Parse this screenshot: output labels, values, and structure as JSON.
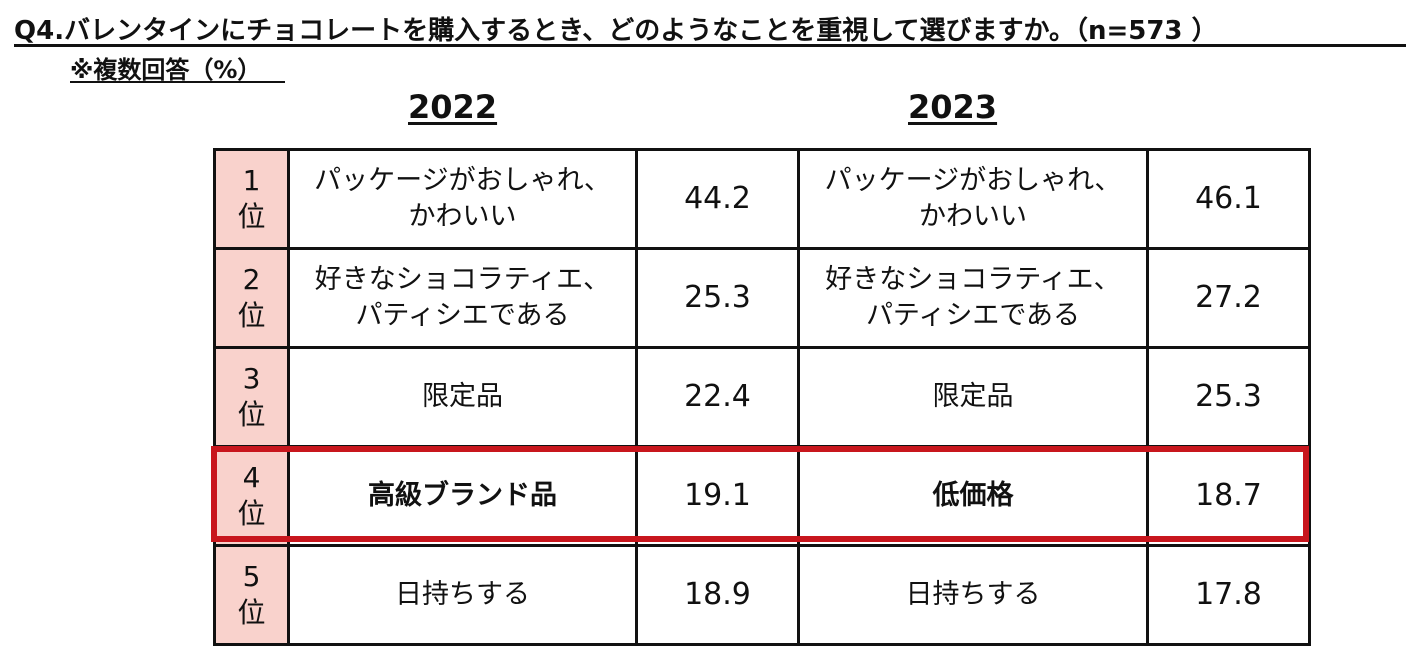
{
  "title": "Q4.バレンタインにチョコレートを購入するとき、どのようなことを重視して選びますか。（n=573 ）",
  "note": "※複数回答（%）",
  "years": [
    "2022",
    "2023"
  ],
  "rows": [
    {
      "rank_num": "1",
      "rank_suffix": "位",
      "item_2022": "パッケージがおしゃれ、\nかわいい",
      "value_2022": "44.2",
      "item_2023": "パッケージがおしゃれ、\nかわいい",
      "value_2023": "46.1"
    },
    {
      "rank_num": "2",
      "rank_suffix": "位",
      "item_2022": "好きなショコラティエ、\nパティシエである",
      "value_2022": "25.3",
      "item_2023": "好きなショコラティエ、\nパティシエである",
      "value_2023": "27.2"
    },
    {
      "rank_num": "3",
      "rank_suffix": "位",
      "item_2022": "限定品",
      "value_2022": "22.4",
      "item_2023": "限定品",
      "value_2023": "25.3"
    },
    {
      "rank_num": "4",
      "rank_suffix": "位",
      "item_2022": "高級ブランド品",
      "value_2022": "19.1",
      "item_2023": "低価格",
      "value_2023": "18.7"
    },
    {
      "rank_num": "5",
      "rank_suffix": "位",
      "item_2022": "日持ちする",
      "value_2022": "18.9",
      "item_2023": "日持ちする",
      "value_2023": "17.8"
    }
  ],
  "colors": {
    "rank_bg": "#f9d2cc",
    "highlight": "#c8161d"
  }
}
